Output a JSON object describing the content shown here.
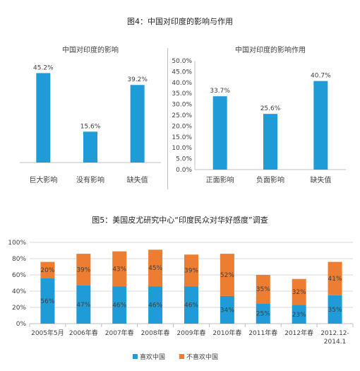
{
  "figure4": {
    "title": "图4：中国对印度的影响与作用"
  },
  "figure5": {
    "title": "图5：美国皮尤研究中心“印度民众对华好感度”调查"
  },
  "colors": {
    "blue": "#1f9bd7",
    "orange": "#ed7d31",
    "axis": "#bfbfbf",
    "grid": "#d9d9d9",
    "text": "#404040"
  },
  "chart_data": [
    {
      "type": "bar",
      "title": "中国对印度的影响",
      "categories": [
        "巨大影响",
        "没有影响",
        "缺失值"
      ],
      "values": [
        45.2,
        15.6,
        39.2
      ],
      "value_labels": [
        "45.2%",
        "15.6%",
        "39.2%"
      ],
      "ylim": [
        0,
        50
      ],
      "color": "#1f9bd7",
      "grid": false,
      "y_axis_shown": false
    },
    {
      "type": "bar",
      "title": "中国对印度的影响作用",
      "categories": [
        "正面影响",
        "负面影响",
        "缺失值"
      ],
      "values": [
        33.7,
        25.6,
        40.7
      ],
      "value_labels": [
        "33.7%",
        "25.6%",
        "40.7%"
      ],
      "ylim": [
        0,
        50
      ],
      "yticks": [
        "0.0%",
        "5.0%",
        "10.0%",
        "15.0%",
        "20.0%",
        "25.0%",
        "30.0%",
        "35.0%",
        "40.0%",
        "45.0%",
        "50.0%"
      ],
      "color": "#1f9bd7",
      "grid": false
    },
    {
      "type": "bar",
      "stacked": true,
      "categories": [
        "2005年5月",
        "2006年春",
        "2007年春",
        "2008年春",
        "2009年春",
        "2010年春",
        "2011年春",
        "2012年春",
        "2012.12-2014.1"
      ],
      "series": [
        {
          "name": "喜欢中国",
          "values": [
            56,
            47,
            46,
            46,
            46,
            34,
            25,
            23,
            35
          ],
          "labels": [
            "56%",
            "47%",
            "46%",
            "46%",
            "46%",
            "34%",
            "25%",
            "23%",
            "35%"
          ],
          "color": "#1f9bd7"
        },
        {
          "name": "不喜欢中国",
          "values": [
            20,
            39,
            43,
            45,
            39,
            52,
            35,
            32,
            41
          ],
          "labels": [
            "20%",
            "39%",
            "43%",
            "45%",
            "39%",
            "52%",
            "35%",
            "32%",
            "41%"
          ],
          "color": "#ed7d31"
        }
      ],
      "ylim": [
        0,
        100
      ],
      "yticks": [
        "0%",
        "20%",
        "40%",
        "60%",
        "80%",
        "100%"
      ],
      "grid": true,
      "legend": "bottom"
    }
  ]
}
